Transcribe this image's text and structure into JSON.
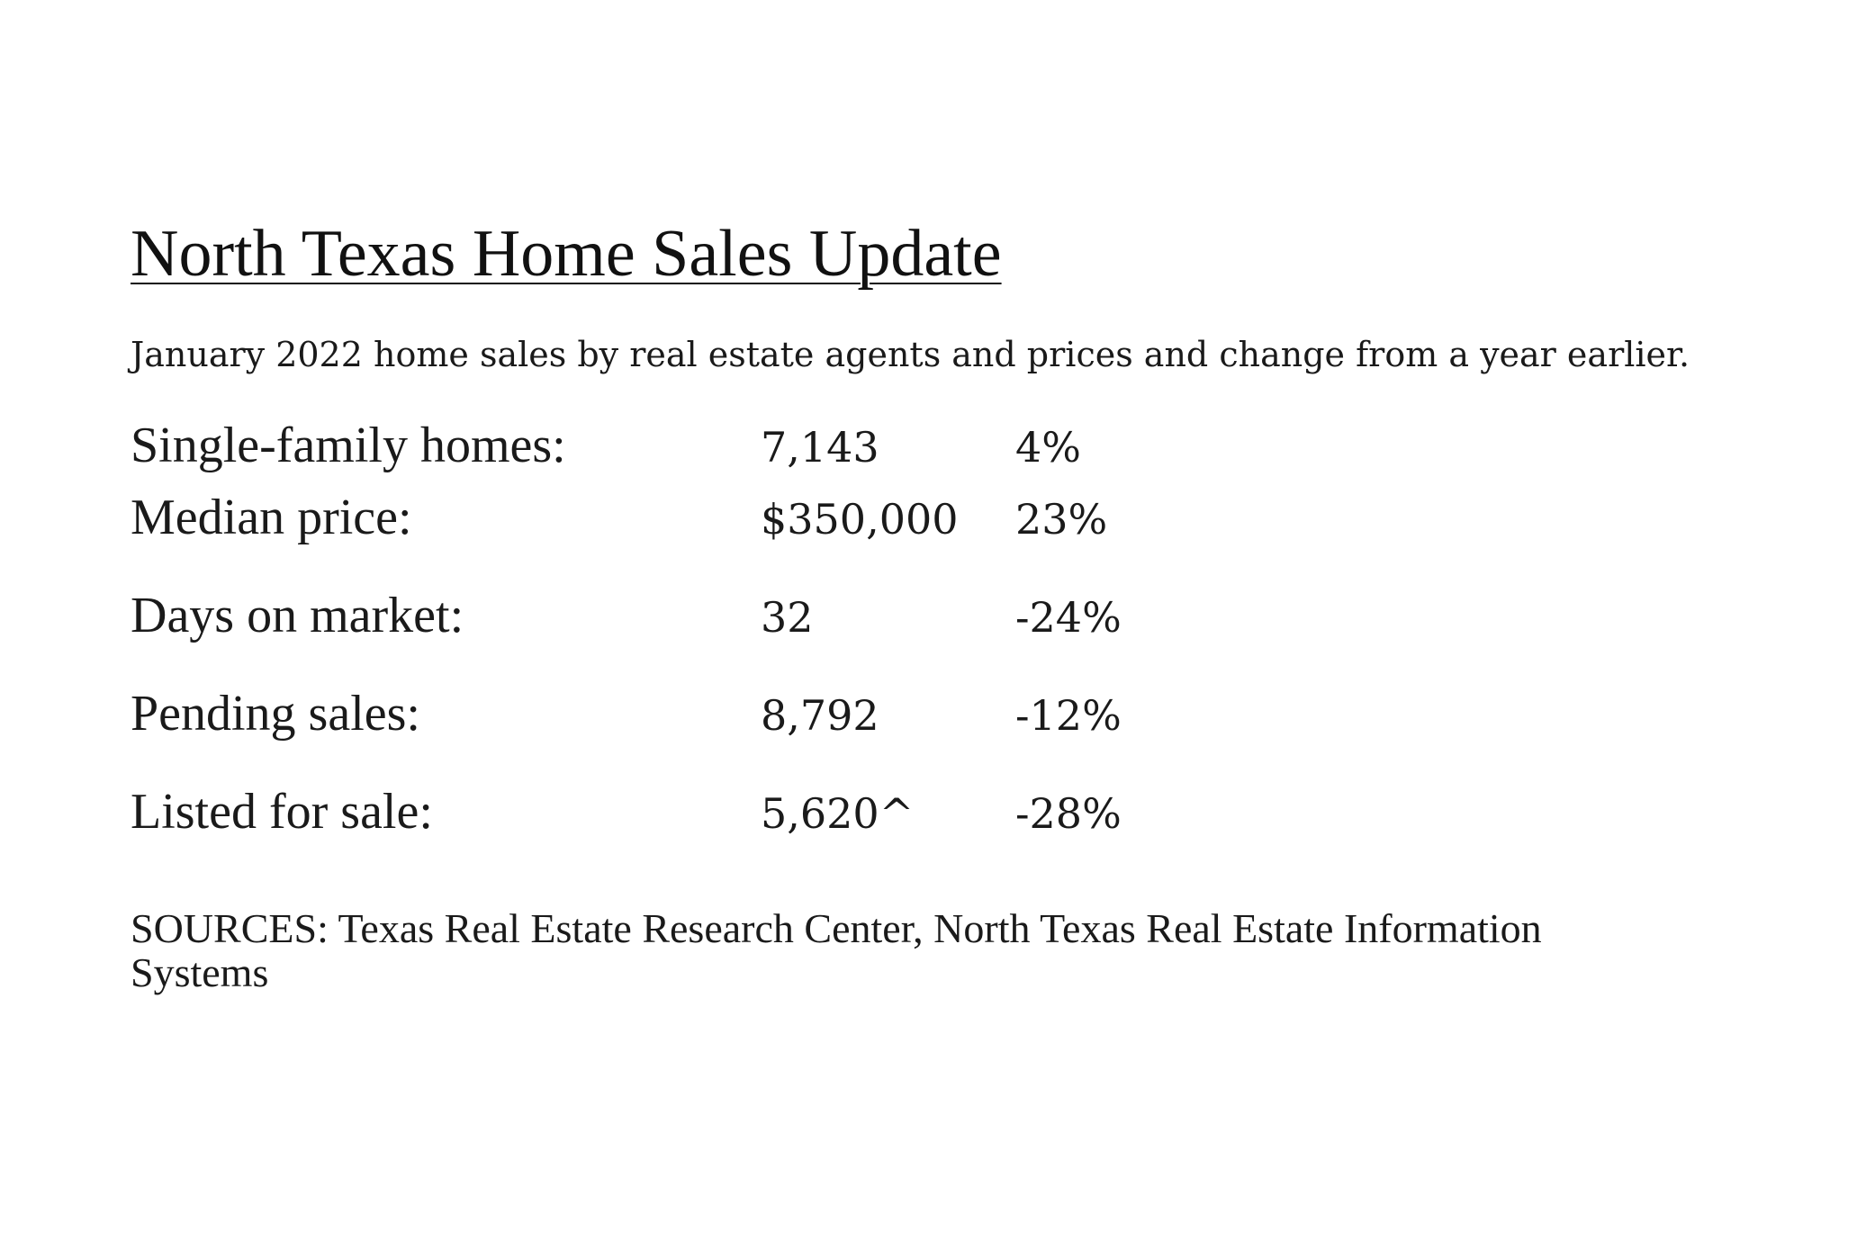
{
  "document": {
    "title": "North Texas Home Sales Update",
    "subtitle": "January 2022 home sales by real estate agents and prices and change from a year earlier.",
    "stats": [
      {
        "label": "Single-family homes:",
        "value": "7,143",
        "change": "4%"
      },
      {
        "label": "Median price:",
        "value": "$350,000",
        "change": "23%"
      },
      {
        "label": "Days on market:",
        "value": "32",
        "change": "-24%"
      },
      {
        "label": "Pending sales:",
        "value": "8,792",
        "change": "-12%"
      },
      {
        "label": "Listed for sale:",
        "value": "5,620^",
        "change": "-28%"
      }
    ],
    "sources": "SOURCES: Texas Real Estate Research Center, North Texas Real Estate Information Systems"
  }
}
